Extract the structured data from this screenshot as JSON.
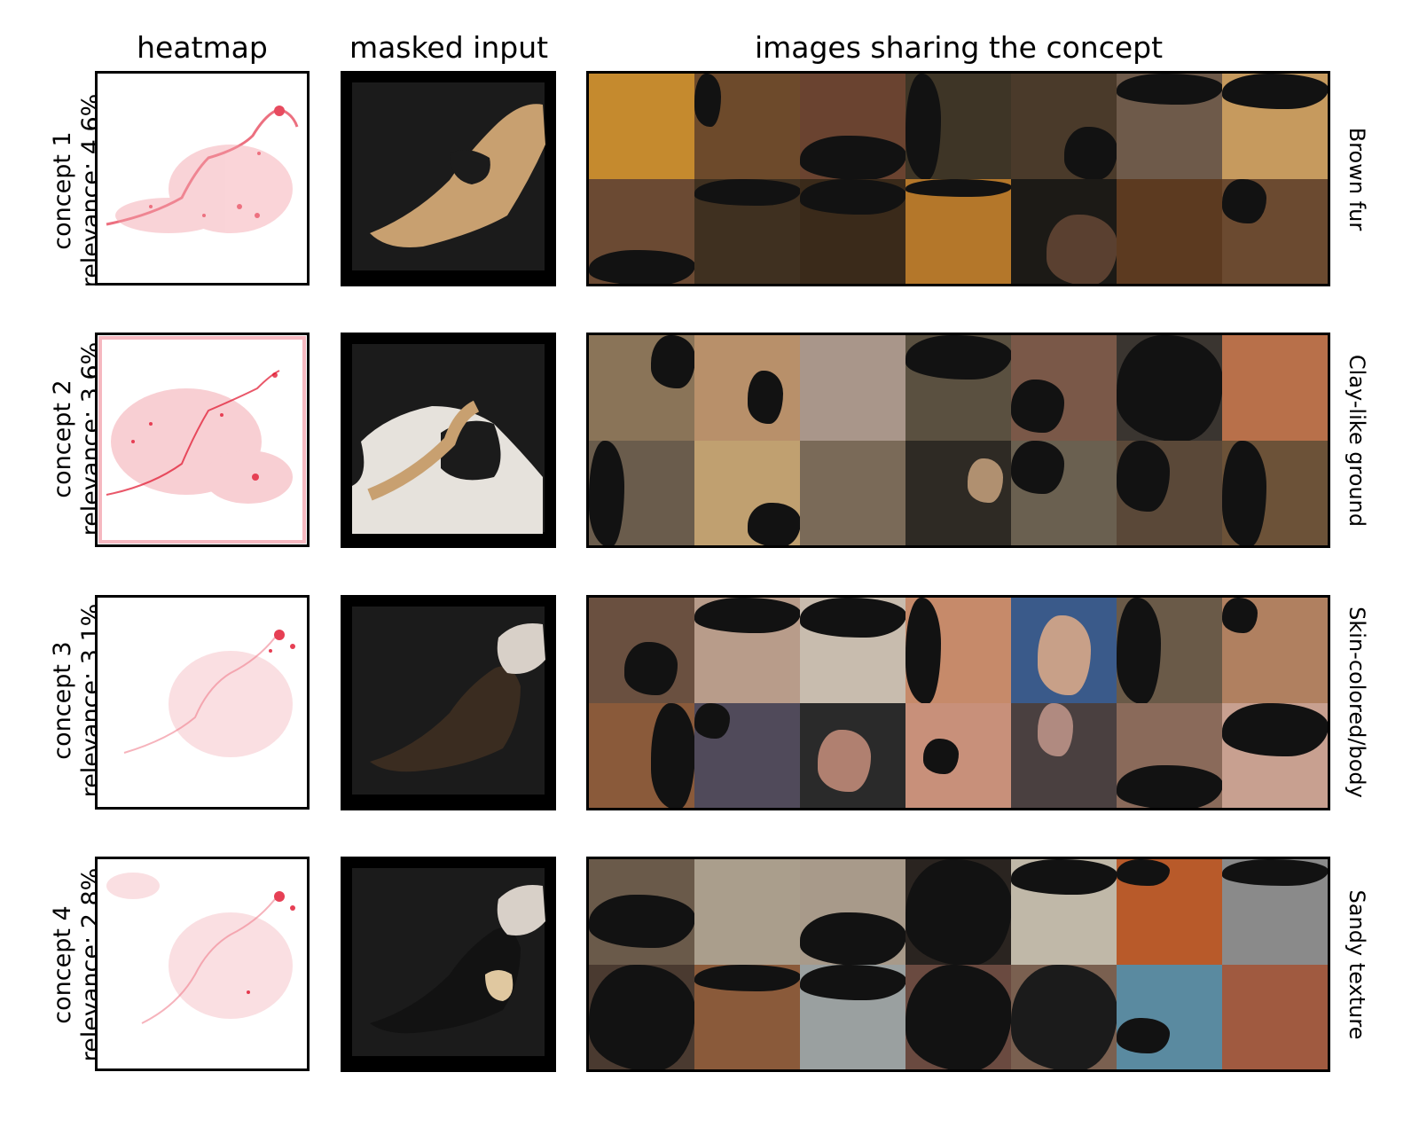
{
  "headers": {
    "heatmap": "heatmap",
    "masked_input": "masked input",
    "images_sharing": "images sharing the concept"
  },
  "rows": [
    {
      "concept": "concept 1",
      "relevance": "relevance: 4.6%",
      "title": "Brown fur",
      "tiles": [
        "#c58a2e",
        "#6d4a2b",
        "#6a4330",
        "#3e3526",
        "#4a3a2a",
        "#6e5a4a",
        "#c69a5e",
        "#6b4a33",
        "#3f3020",
        "#3a2a1a",
        "#b4772a",
        "#1c1a16",
        "#5c3a20",
        "#6b4a30"
      ]
    },
    {
      "concept": "concept 2",
      "relevance": "relevance: 3.6%",
      "title": "Clay-like ground",
      "tiles": [
        "#8a7458",
        "#b8906a",
        "#a9968a",
        "#5a5040",
        "#7a5848",
        "#3a3530",
        "#b8704a",
        "#6a5c4c",
        "#c0a070",
        "#7a6a58",
        "#2e2a24",
        "#6a6050",
        "#5a4838",
        "#6c5238"
      ]
    },
    {
      "concept": "concept 3",
      "relevance": "relevance: 3.1%",
      "title": "Skin-colored/body",
      "tiles": [
        "#6a5040",
        "#b89c8a",
        "#c8bcae",
        "#c68a6a",
        "#3a5a8a",
        "#6a5a48",
        "#b08060",
        "#8a5a3a",
        "#504a5a",
        "#2a2a2a",
        "#c8907a",
        "#4a4040",
        "#8a6a5a",
        "#c8a090"
      ]
    },
    {
      "concept": "concept 4",
      "relevance": "relevance: 2.8%",
      "title": "Sandy texture",
      "tiles": [
        "#6a5a4a",
        "#aa9e8c",
        "#a89a8a",
        "#2a2420",
        "#c0b8a8",
        "#b85a2a",
        "#8a8a8a",
        "#4a3a30",
        "#8a5a3a",
        "#9aa0a0",
        "#6a4a40",
        "#7a6050",
        "#5a8aa0",
        "#a05a40"
      ]
    }
  ]
}
